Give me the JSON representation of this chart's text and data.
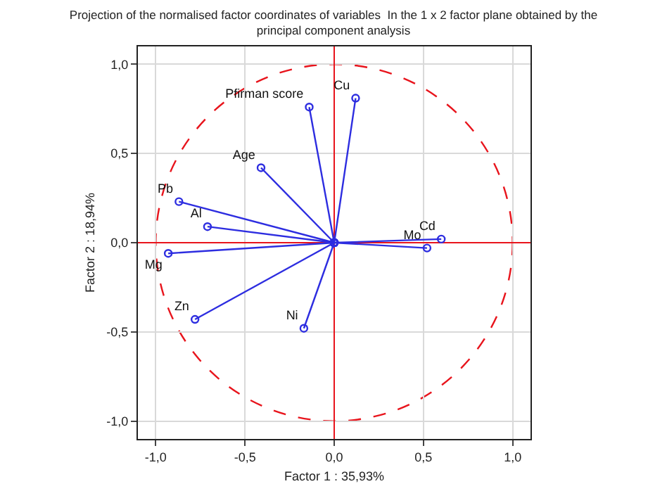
{
  "chart_data": {
    "type": "line",
    "title": "Projection of the normalised factor coordinates of variables  In the 1 x 2 factor plane obtained by the principal component analysis",
    "xlabel": "Factor 1 : 35,93%",
    "ylabel": "Factor 2 : 18,94%",
    "xlim": [
      -1.1,
      1.1
    ],
    "ylim": [
      -1.1,
      1.1
    ],
    "xticks": [
      {
        "value": -1,
        "label": "-1,0"
      },
      {
        "value": -0.5,
        "label": "-0,5"
      },
      {
        "value": 0,
        "label": "0,0"
      },
      {
        "value": 0.5,
        "label": "0,5"
      },
      {
        "value": 1,
        "label": "1,0"
      }
    ],
    "yticks": [
      {
        "value": -1,
        "label": "-1,0"
      },
      {
        "value": -0.5,
        "label": "-0,5"
      },
      {
        "value": 0,
        "label": "0,0"
      },
      {
        "value": 0.5,
        "label": "0,5"
      },
      {
        "value": 1,
        "label": "1,0"
      }
    ],
    "grid": true,
    "legend": false,
    "marker": "circle",
    "line_style": "solid",
    "series": [
      {
        "name": "Pfirman score",
        "color": "#2d2de0",
        "x": [
          0,
          -0.14
        ],
        "values": [
          0,
          0.76
        ]
      },
      {
        "name": "Cu",
        "color": "#2d2de0",
        "x": [
          0,
          0.12
        ],
        "values": [
          0,
          0.81
        ]
      },
      {
        "name": "Age",
        "color": "#2d2de0",
        "x": [
          0,
          -0.41
        ],
        "values": [
          0,
          0.42
        ]
      },
      {
        "name": "Pb",
        "color": "#2d2de0",
        "x": [
          0,
          -0.87
        ],
        "values": [
          0,
          0.23
        ]
      },
      {
        "name": "Al",
        "color": "#2d2de0",
        "x": [
          0,
          -0.71
        ],
        "values": [
          0,
          0.09
        ]
      },
      {
        "name": "Mg",
        "color": "#2d2de0",
        "x": [
          0,
          -0.93
        ],
        "values": [
          0,
          -0.06
        ]
      },
      {
        "name": "Zn",
        "color": "#2d2de0",
        "x": [
          0,
          -0.78
        ],
        "values": [
          0,
          -0.43
        ]
      },
      {
        "name": "Ni",
        "color": "#2d2de0",
        "x": [
          0,
          -0.17
        ],
        "values": [
          0,
          -0.48
        ]
      },
      {
        "name": "Mo",
        "color": "#2d2de0",
        "x": [
          0,
          0.52
        ],
        "values": [
          0,
          -0.03
        ]
      },
      {
        "name": "Cd",
        "color": "#2d2de0",
        "x": [
          0,
          0.6
        ],
        "values": [
          0,
          0.02
        ]
      }
    ]
  }
}
